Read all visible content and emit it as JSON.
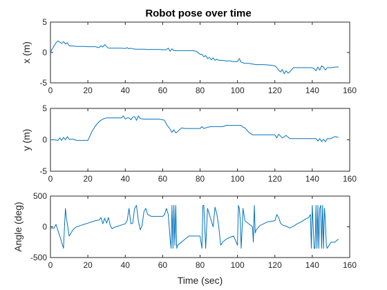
{
  "chart_data": [
    {
      "type": "line",
      "title": "Robot pose over time",
      "xlabel": "",
      "ylabel": "x (m)",
      "xlim": [
        0,
        160
      ],
      "ylim": [
        -5,
        5
      ],
      "xticks": [
        0,
        20,
        40,
        60,
        80,
        100,
        120,
        140,
        160
      ],
      "yticks": [
        -5,
        0,
        5
      ],
      "color": "#0072bd",
      "series": [
        {
          "x": [
            0,
            1,
            2,
            3,
            4,
            5,
            6,
            7,
            8,
            9,
            10,
            12,
            14,
            16,
            18,
            20,
            22,
            24,
            26,
            27,
            28,
            29,
            30,
            31,
            32,
            34,
            36,
            38,
            40,
            41,
            42,
            43,
            44,
            46,
            48,
            50,
            52,
            54,
            56,
            58,
            60,
            62,
            63,
            64,
            65,
            66,
            68,
            70,
            72,
            74,
            76,
            78,
            80,
            81,
            82,
            83,
            84,
            85,
            86,
            87,
            88,
            89,
            90,
            92,
            94,
            96,
            98,
            100,
            101,
            102,
            103,
            104,
            106,
            108,
            110,
            112,
            114,
            116,
            118,
            120,
            121,
            122,
            123,
            124,
            125,
            126,
            127,
            128,
            129,
            130,
            132,
            134,
            136,
            138,
            140,
            141,
            142,
            143,
            144,
            145,
            146,
            147,
            148,
            150,
            152,
            154
          ],
          "y": [
            0,
            0.6,
            1.1,
            1.6,
            1.9,
            1.7,
            1.5,
            1.8,
            1.4,
            1.6,
            1.1,
            1.05,
            1.0,
            1.0,
            1.0,
            0.95,
            0.95,
            0.95,
            0.8,
            1.1,
            0.9,
            1.3,
            1.0,
            0.7,
            0.7,
            0.7,
            0.7,
            0.7,
            0.65,
            0.8,
            0.6,
            0.7,
            0.6,
            0.55,
            0.55,
            0.55,
            0.5,
            0.5,
            0.5,
            0.5,
            0.45,
            0.45,
            0.7,
            0.2,
            0.6,
            0.3,
            0.3,
            0.3,
            0.3,
            0.3,
            0.3,
            0.2,
            -0.3,
            -0.3,
            -0.7,
            -0.5,
            -1.0,
            -0.8,
            -1.2,
            -0.9,
            -1.3,
            -1.1,
            -1.3,
            -1.3,
            -1.4,
            -1.4,
            -1.5,
            -1.5,
            -1.0,
            -1.6,
            -1.7,
            -1.8,
            -1.8,
            -1.9,
            -2.0,
            -2.0,
            -2.0,
            -2.05,
            -2.1,
            -2.2,
            -2.5,
            -2.9,
            -3.2,
            -2.8,
            -3.5,
            -3.0,
            -3.4,
            -3.2,
            -2.8,
            -2.5,
            -2.5,
            -2.5,
            -2.5,
            -2.5,
            -2.5,
            -2.7,
            -3.0,
            -2.4,
            -2.9,
            -2.2,
            -2.4,
            -2.9,
            -2.5,
            -2.5,
            -2.4,
            -2.4
          ]
        }
      ]
    },
    {
      "type": "line",
      "title": "",
      "xlabel": "",
      "ylabel": "y (m)",
      "xlim": [
        0,
        160
      ],
      "ylim": [
        -5,
        5
      ],
      "xticks": [
        0,
        20,
        40,
        60,
        80,
        100,
        120,
        140,
        160
      ],
      "yticks": [
        -5,
        0,
        5
      ],
      "color": "#0072bd",
      "series": [
        {
          "x": [
            0,
            2,
            4,
            5,
            6,
            7,
            8,
            9,
            10,
            12,
            14,
            16,
            18,
            20,
            21,
            22,
            24,
            26,
            28,
            30,
            32,
            34,
            36,
            38,
            39,
            40,
            41,
            42,
            43,
            44,
            45,
            46,
            47,
            48,
            50,
            52,
            54,
            56,
            58,
            60,
            61,
            62,
            64,
            65,
            66,
            67,
            68,
            70,
            72,
            74,
            76,
            78,
            80,
            81,
            82,
            84,
            86,
            88,
            90,
            92,
            94,
            96,
            98,
            100,
            102,
            103,
            104,
            106,
            108,
            110,
            112,
            114,
            116,
            118,
            120,
            121,
            122,
            124,
            126,
            128,
            130,
            132,
            134,
            136,
            138,
            140,
            142,
            143,
            144,
            145,
            146,
            147,
            148,
            150,
            152,
            154
          ],
          "y": [
            0,
            0,
            -0.1,
            0.3,
            -0.1,
            0.4,
            0,
            0.5,
            0.1,
            0.1,
            -0.1,
            -0.1,
            -0.1,
            -0.1,
            0.5,
            1.2,
            2.2,
            2.9,
            3.3,
            3.5,
            3.5,
            3.5,
            3.5,
            3.5,
            3.8,
            3.3,
            3.5,
            3.5,
            3.2,
            3.6,
            3.7,
            3.1,
            3.8,
            3.4,
            3.3,
            3.3,
            3.3,
            3.3,
            3.3,
            3.2,
            3.1,
            2.5,
            1.7,
            1.2,
            1.6,
            1.1,
            1.3,
            1.9,
            1.8,
            1.8,
            1.8,
            1.8,
            1.8,
            2.1,
            1.8,
            2.0,
            2.1,
            2.1,
            2.1,
            2.1,
            2.3,
            2.3,
            2.3,
            2.3,
            2.3,
            2.0,
            1.9,
            1.2,
            0.8,
            0.8,
            0.8,
            0.8,
            0.8,
            0.8,
            0.8,
            0.3,
            0.9,
            0.3,
            0.7,
            0.2,
            0.2,
            0.2,
            0.2,
            0.2,
            0.2,
            0.2,
            0.2,
            -0.2,
            0.2,
            -0.3,
            0.1,
            -0.3,
            0.2,
            0.2,
            0.5,
            0.4
          ]
        }
      ]
    },
    {
      "type": "line",
      "title": "",
      "xlabel": "Time (sec)",
      "ylabel": "Angle (deg)",
      "xlim": [
        0,
        160
      ],
      "ylim": [
        -500,
        500
      ],
      "xticks": [
        0,
        20,
        40,
        60,
        80,
        100,
        120,
        140,
        160
      ],
      "yticks": [
        -500,
        0,
        500
      ],
      "color": "#0072bd",
      "series": [
        {
          "x": [
            0,
            2,
            3,
            4,
            5,
            6,
            7,
            7.5,
            8,
            8.5,
            9,
            10,
            11,
            12,
            13,
            14,
            16,
            18,
            20,
            22,
            24,
            26,
            27,
            28,
            29,
            30,
            31,
            32,
            33,
            34,
            36,
            38,
            40,
            41,
            42,
            43,
            44,
            45,
            46,
            47,
            48,
            49,
            50,
            51,
            52,
            54,
            56,
            58,
            60,
            61,
            62,
            63,
            64,
            64.5,
            65,
            65.5,
            66,
            66.5,
            67,
            67.5,
            68,
            70,
            72,
            74,
            76,
            78,
            80,
            81,
            81.5,
            82,
            82.5,
            83,
            84,
            85,
            86,
            87,
            88,
            89,
            90,
            91,
            92,
            94,
            96,
            98,
            100,
            100.5,
            101,
            101.5,
            102,
            103,
            104,
            106,
            108,
            108.5,
            109,
            109.5,
            110,
            112,
            114,
            116,
            118,
            120,
            121,
            122,
            123,
            124,
            126,
            128,
            130,
            132,
            134,
            136,
            138,
            139,
            139.5,
            140,
            141,
            141.5,
            142,
            142.5,
            143,
            143.5,
            144,
            144.5,
            145,
            145.5,
            146,
            146.5,
            147,
            147.5,
            148,
            149,
            150,
            152,
            154
          ],
          "y": [
            -20,
            -20,
            40,
            -60,
            -150,
            -250,
            -350,
            0,
            300,
            150,
            50,
            -150,
            -100,
            -50,
            -20,
            0,
            20,
            40,
            60,
            80,
            100,
            110,
            150,
            50,
            140,
            60,
            150,
            20,
            -30,
            -10,
            10,
            30,
            50,
            100,
            300,
            50,
            60,
            300,
            350,
            100,
            -50,
            20,
            250,
            300,
            200,
            170,
            170,
            170,
            170,
            200,
            300,
            200,
            -200,
            -350,
            350,
            -350,
            350,
            -300,
            350,
            -350,
            -300,
            -250,
            -200,
            -150,
            -150,
            -150,
            -150,
            -350,
            350,
            350,
            0,
            -350,
            300,
            200,
            100,
            0,
            320,
            200,
            0,
            -300,
            -250,
            -200,
            -170,
            -150,
            -300,
            350,
            300,
            100,
            -350,
            300,
            100,
            50,
            0,
            -250,
            350,
            -100,
            -50,
            20,
            50,
            80,
            90,
            100,
            200,
            150,
            60,
            30,
            10,
            -20,
            10,
            50,
            80,
            120,
            150,
            200,
            -350,
            350,
            -350,
            -350,
            350,
            -350,
            350,
            -350,
            300,
            350,
            -350,
            350,
            -350,
            300,
            100,
            -300,
            -350,
            -300,
            -250,
            -250,
            -200
          ]
        }
      ]
    }
  ]
}
